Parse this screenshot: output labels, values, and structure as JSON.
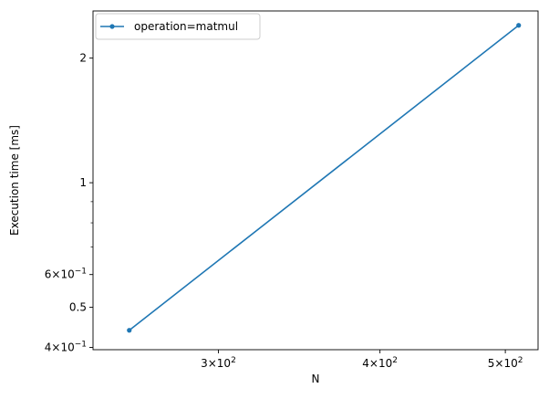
{
  "chart_data": {
    "type": "line",
    "xlabel": "N",
    "ylabel": "Execution time [ms]",
    "xscale": "log",
    "yscale": "log",
    "xlim": [
      240,
      530
    ],
    "ylim": [
      0.395,
      2.6
    ],
    "grid": false,
    "legend_position": "top-left",
    "series": [
      {
        "name": "operation=matmul",
        "color": "#1f77b4",
        "marker": "circle",
        "x": [
          256,
          512
        ],
        "y": [
          0.44,
          2.4
        ]
      }
    ],
    "x_ticks": [
      {
        "value": 300,
        "base": "3×10",
        "exp": "2"
      },
      {
        "value": 400,
        "base": "4×10",
        "exp": "2"
      },
      {
        "value": 500,
        "base": "5×10",
        "exp": "2"
      }
    ],
    "x_minor_ticks": [],
    "y_ticks": [
      {
        "value": 0.4,
        "base": "4×10",
        "exp": "−1"
      },
      {
        "value": 0.5,
        "base": "0.5",
        "exp": ""
      },
      {
        "value": 0.6,
        "base": "6×10",
        "exp": "−1"
      },
      {
        "value": 1,
        "base": "1",
        "exp": ""
      },
      {
        "value": 2,
        "base": "2",
        "exp": ""
      }
    ],
    "y_minor_ticks": [
      0.7,
      0.8,
      0.9
    ]
  }
}
